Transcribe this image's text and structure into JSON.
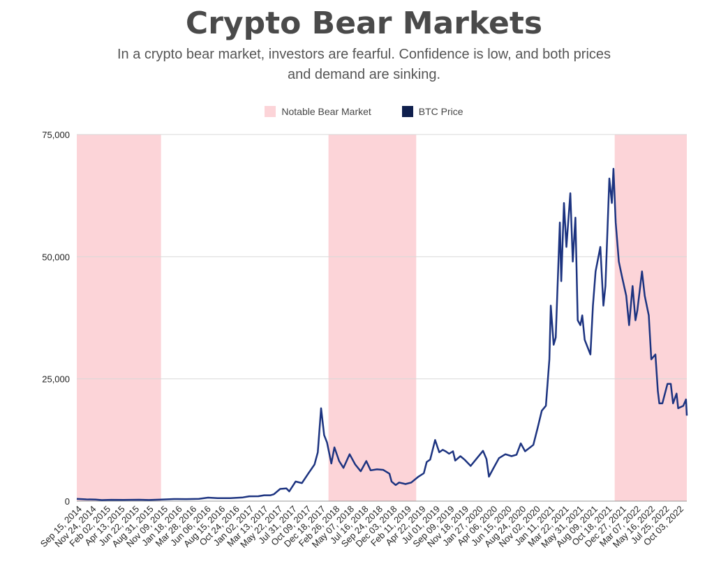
{
  "chart_data": {
    "type": "line",
    "title": "Crypto Bear Markets",
    "subtitle": "In a crypto bear market, investors are fearful. Confidence is low, and both prices and demand are sinking.",
    "xlabel": "",
    "ylabel": "",
    "ylim": [
      0,
      75000
    ],
    "y_ticks": [
      0,
      25000,
      50000,
      75000
    ],
    "y_tick_labels": [
      "0",
      "25,000",
      "50,000",
      "75,000"
    ],
    "grid": true,
    "legend_position": "top-center",
    "x_range": [
      "2014-09-15",
      "2022-11-01"
    ],
    "x_tick_labels": [
      "Sep 15, 2014",
      "Nov 24, 2014",
      "Feb 02, 2015",
      "Apr 13, 2015",
      "Jun 22, 2015",
      "Aug 31, 2015",
      "Nov 09, 2015",
      "Jan 18, 2016",
      "Mar 28, 2016",
      "Jun 06, 2016",
      "Aug 15, 2016",
      "Oct 24, 2016",
      "Jan 02, 2017",
      "Mar 13, 2017",
      "May 22, 2017",
      "Jul 31, 2017",
      "Oct 09, 2017",
      "Dec 18, 2017",
      "Feb 26, 2018",
      "May 07, 2018",
      "Jul 16, 2018",
      "Sep 24, 2018",
      "Dec 03, 2018",
      "Feb 11, 2019",
      "Apr 22, 2019",
      "Jul 01, 2019",
      "Sep 09, 2019",
      "Nov 18, 2019",
      "Jan 27, 2020",
      "Apr 06, 2020",
      "Jun 15, 2020",
      "Aug 24, 2020",
      "Nov 02, 2020",
      "Jan 11, 2021",
      "Mar 22, 2021",
      "May 31, 2021",
      "Aug 09, 2021",
      "Oct 18, 2021",
      "Dec 27, 2021",
      "Mar 07, 2022",
      "May 16, 2022",
      "Jul 25, 2022",
      "Oct 03, 2022"
    ],
    "bear_markets": [
      {
        "start": "2014-09-15",
        "end": "2015-10-30"
      },
      {
        "start": "2018-01-22",
        "end": "2019-03-25"
      },
      {
        "start": "2021-11-15",
        "end": "2022-11-01"
      }
    ],
    "series": [
      {
        "name": "BTC Price",
        "color": "#1c3380",
        "points": [
          [
            "2014-09-15",
            460
          ],
          [
            "2014-11-01",
            360
          ],
          [
            "2014-12-15",
            330
          ],
          [
            "2015-01-15",
            220
          ],
          [
            "2015-03-01",
            270
          ],
          [
            "2015-05-01",
            240
          ],
          [
            "2015-07-15",
            280
          ],
          [
            "2015-09-01",
            230
          ],
          [
            "2015-11-01",
            330
          ],
          [
            "2016-01-01",
            430
          ],
          [
            "2016-03-01",
            420
          ],
          [
            "2016-05-01",
            450
          ],
          [
            "2016-06-15",
            720
          ],
          [
            "2016-08-01",
            600
          ],
          [
            "2016-10-01",
            610
          ],
          [
            "2016-12-01",
            750
          ],
          [
            "2017-01-01",
            990
          ],
          [
            "2017-02-15",
            1000
          ],
          [
            "2017-03-15",
            1200
          ],
          [
            "2017-04-15",
            1200
          ],
          [
            "2017-05-01",
            1400
          ],
          [
            "2017-06-01",
            2500
          ],
          [
            "2017-07-01",
            2600
          ],
          [
            "2017-07-15",
            2000
          ],
          [
            "2017-08-15",
            4000
          ],
          [
            "2017-09-15",
            3700
          ],
          [
            "2017-10-15",
            5600
          ],
          [
            "2017-11-15",
            7500
          ],
          [
            "2017-12-01",
            10000
          ],
          [
            "2017-12-17",
            19000
          ],
          [
            "2018-01-01",
            13500
          ],
          [
            "2018-01-15",
            12000
          ],
          [
            "2018-02-05",
            7700
          ],
          [
            "2018-02-20",
            11000
          ],
          [
            "2018-03-15",
            8200
          ],
          [
            "2018-04-05",
            6800
          ],
          [
            "2018-05-05",
            9600
          ],
          [
            "2018-06-01",
            7500
          ],
          [
            "2018-06-28",
            6100
          ],
          [
            "2018-07-25",
            8200
          ],
          [
            "2018-08-15",
            6300
          ],
          [
            "2018-09-15",
            6500
          ],
          [
            "2018-10-15",
            6400
          ],
          [
            "2018-11-15",
            5600
          ],
          [
            "2018-11-25",
            4000
          ],
          [
            "2018-12-15",
            3300
          ],
          [
            "2019-01-01",
            3800
          ],
          [
            "2019-02-01",
            3500
          ],
          [
            "2019-03-01",
            3800
          ],
          [
            "2019-04-05",
            5000
          ],
          [
            "2019-05-01",
            5700
          ],
          [
            "2019-05-15",
            8000
          ],
          [
            "2019-06-01",
            8500
          ],
          [
            "2019-06-25",
            12500
          ],
          [
            "2019-07-15",
            10000
          ],
          [
            "2019-08-01",
            10500
          ],
          [
            "2019-08-15",
            10200
          ],
          [
            "2019-09-01",
            9700
          ],
          [
            "2019-09-20",
            10200
          ],
          [
            "2019-10-01",
            8300
          ],
          [
            "2019-10-26",
            9200
          ],
          [
            "2019-11-15",
            8500
          ],
          [
            "2019-12-15",
            7200
          ],
          [
            "2020-01-15",
            8800
          ],
          [
            "2020-02-13",
            10300
          ],
          [
            "2020-03-01",
            8600
          ],
          [
            "2020-03-13",
            5000
          ],
          [
            "2020-04-01",
            6500
          ],
          [
            "2020-05-01",
            8800
          ],
          [
            "2020-06-01",
            9600
          ],
          [
            "2020-07-01",
            9200
          ],
          [
            "2020-07-25",
            9500
          ],
          [
            "2020-08-15",
            11800
          ],
          [
            "2020-09-05",
            10200
          ],
          [
            "2020-10-15",
            11500
          ],
          [
            "2020-11-05",
            15000
          ],
          [
            "2020-11-25",
            18500
          ],
          [
            "2020-12-15",
            19500
          ],
          [
            "2021-01-01",
            29000
          ],
          [
            "2021-01-08",
            40000
          ],
          [
            "2021-01-22",
            32000
          ],
          [
            "2021-02-01",
            33500
          ],
          [
            "2021-02-21",
            57000
          ],
          [
            "2021-02-28",
            45000
          ],
          [
            "2021-03-13",
            61000
          ],
          [
            "2021-03-25",
            52000
          ],
          [
            "2021-04-13",
            63000
          ],
          [
            "2021-04-25",
            49000
          ],
          [
            "2021-05-08",
            58000
          ],
          [
            "2021-05-19",
            37000
          ],
          [
            "2021-06-01",
            36000
          ],
          [
            "2021-06-10",
            38000
          ],
          [
            "2021-06-22",
            33000
          ],
          [
            "2021-07-20",
            30000
          ],
          [
            "2021-08-01",
            40000
          ],
          [
            "2021-08-14",
            47000
          ],
          [
            "2021-09-06",
            52000
          ],
          [
            "2021-09-21",
            40000
          ],
          [
            "2021-10-01",
            44000
          ],
          [
            "2021-10-20",
            66000
          ],
          [
            "2021-11-01",
            61000
          ],
          [
            "2021-11-09",
            68000
          ],
          [
            "2021-11-20",
            57000
          ],
          [
            "2021-12-05",
            49000
          ],
          [
            "2021-12-20",
            46000
          ],
          [
            "2022-01-10",
            42000
          ],
          [
            "2022-01-24",
            36000
          ],
          [
            "2022-02-10",
            44000
          ],
          [
            "2022-02-24",
            37000
          ],
          [
            "2022-03-05",
            39000
          ],
          [
            "2022-03-28",
            47000
          ],
          [
            "2022-04-10",
            42000
          ],
          [
            "2022-04-30",
            38000
          ],
          [
            "2022-05-12",
            29000
          ],
          [
            "2022-06-01",
            30000
          ],
          [
            "2022-06-13",
            22500
          ],
          [
            "2022-06-20",
            20000
          ],
          [
            "2022-07-05",
            20000
          ],
          [
            "2022-07-30",
            24000
          ],
          [
            "2022-08-15",
            24000
          ],
          [
            "2022-08-26",
            20000
          ],
          [
            "2022-09-12",
            22000
          ],
          [
            "2022-09-20",
            19000
          ],
          [
            "2022-10-15",
            19500
          ],
          [
            "2022-10-28",
            20800
          ],
          [
            "2022-11-01",
            17500
          ]
        ]
      }
    ],
    "bear_legend_name": "Notable Bear Market",
    "bear_color": "#fcd4d8",
    "line_color": "#1c3380",
    "legend_swatch_dark": "#0f1f4d"
  }
}
